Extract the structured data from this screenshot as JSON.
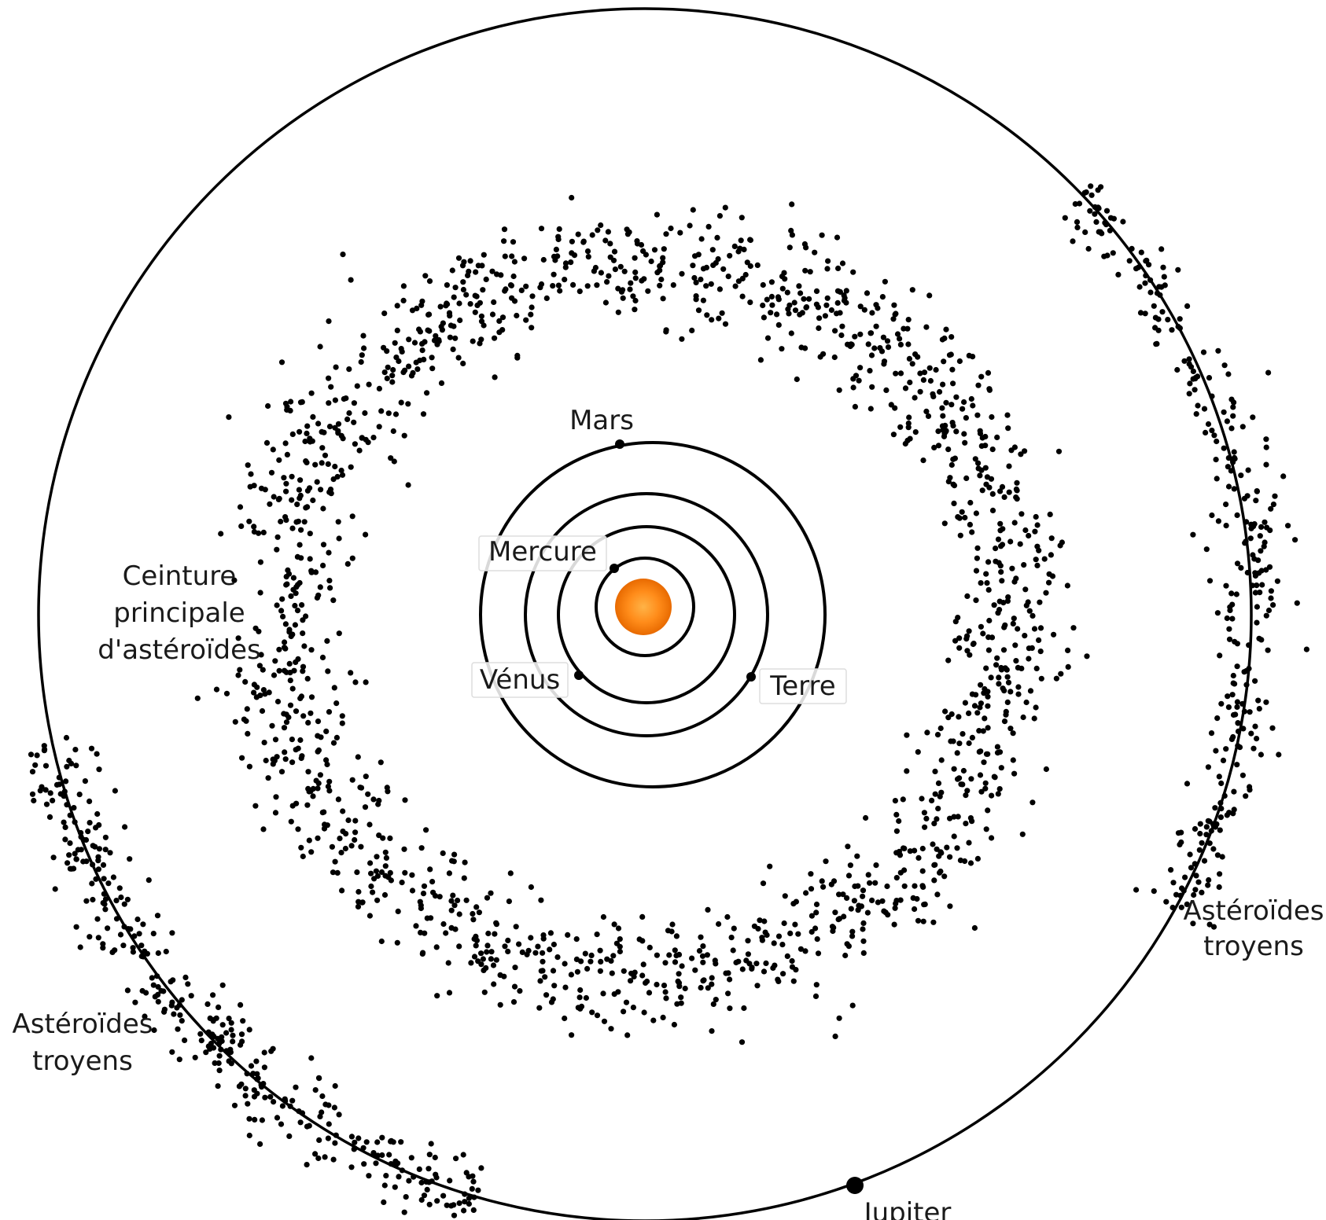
{
  "labels": {
    "mars": "Mars",
    "mercure": "Mercure",
    "venus": "Vénus",
    "terre": "Terre",
    "belt_line1": "Ceinture",
    "belt_line2": "principale",
    "belt_line3": "d'astéroïdes",
    "trojans_right_line1": "Astéroïdes",
    "trojans_right_line2": "troyens",
    "trojans_left_line1": "Astéroïdes",
    "trojans_left_line2": "troyens",
    "jupiter": "Jupiter"
  },
  "colors": {
    "sun_core": "#ffa31a",
    "sun_edge": "#e86a00",
    "ink": "#000000"
  }
}
